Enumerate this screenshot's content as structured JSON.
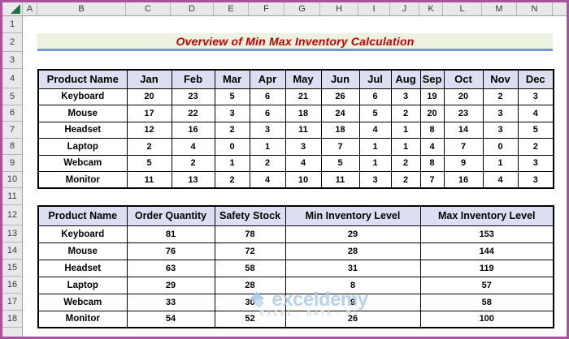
{
  "sheet": {
    "column_letters": [
      "A",
      "B",
      "C",
      "D",
      "E",
      "F",
      "G",
      "H",
      "I",
      "J",
      "K",
      "L",
      "M",
      "N"
    ],
    "row_numbers": [
      "1",
      "2",
      "3",
      "4",
      "5",
      "6",
      "7",
      "8",
      "9",
      "10",
      "11",
      "12",
      "13",
      "14",
      "15",
      "16",
      "17",
      "18"
    ]
  },
  "title_banner": {
    "text": "Overview of Min Max Inventory Calculation"
  },
  "monthly_table": {
    "headers": [
      "Product Name",
      "Jan",
      "Feb",
      "Mar",
      "Apr",
      "May",
      "Jun",
      "Jul",
      "Aug",
      "Sep",
      "Oct",
      "Nov",
      "Dec"
    ],
    "rows": [
      {
        "product": "Keyboard",
        "values": [
          20,
          23,
          5,
          6,
          21,
          26,
          6,
          3,
          19,
          20,
          2,
          3
        ]
      },
      {
        "product": "Mouse",
        "values": [
          17,
          22,
          3,
          6,
          18,
          24,
          5,
          2,
          20,
          23,
          3,
          4
        ]
      },
      {
        "product": "Headset",
        "values": [
          12,
          16,
          2,
          3,
          11,
          18,
          4,
          1,
          8,
          14,
          3,
          5
        ]
      },
      {
        "product": "Laptop",
        "values": [
          2,
          4,
          0,
          1,
          3,
          7,
          1,
          1,
          4,
          7,
          0,
          2
        ]
      },
      {
        "product": "Webcam",
        "values": [
          5,
          2,
          1,
          2,
          4,
          5,
          1,
          2,
          8,
          9,
          1,
          3
        ]
      },
      {
        "product": "Monitor",
        "values": [
          11,
          13,
          2,
          4,
          10,
          11,
          3,
          2,
          7,
          16,
          4,
          3
        ]
      }
    ]
  },
  "summary_table": {
    "headers": [
      "Product Name",
      "Order Quantity",
      "Safety Stock",
      "Min Inventory Level",
      "Max Inventory Level"
    ],
    "rows": [
      {
        "product": "Keyboard",
        "values": [
          81,
          78,
          29,
          153
        ]
      },
      {
        "product": "Mouse",
        "values": [
          76,
          72,
          28,
          144
        ]
      },
      {
        "product": "Headset",
        "values": [
          63,
          58,
          31,
          119
        ]
      },
      {
        "product": "Laptop",
        "values": [
          29,
          28,
          8,
          57
        ]
      },
      {
        "product": "Webcam",
        "values": [
          33,
          30,
          9,
          58
        ]
      },
      {
        "product": "Monitor",
        "values": [
          54,
          52,
          26,
          100
        ]
      }
    ]
  },
  "watermark": {
    "brand": "exceldemy",
    "tagline": "EXCEL · DATA · BI"
  },
  "colors": {
    "frame_border": "#a9519e",
    "header_strip": "#e8e8e8",
    "select_all_triangle": "#217346",
    "banner_fill": "#ecf2df",
    "banner_underline": "#6f9bd2",
    "title_text": "#c00000",
    "table_header_fill": "#dcdff2",
    "table_border": "#000000",
    "watermark_blue": "#aecbe6"
  }
}
